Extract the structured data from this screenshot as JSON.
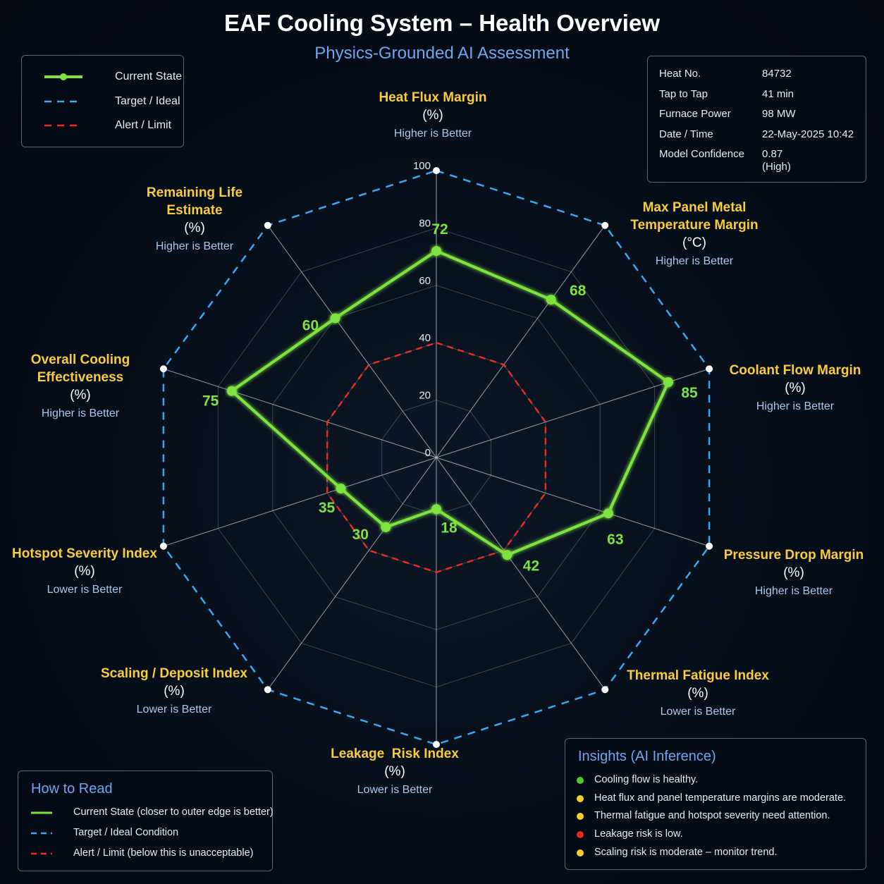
{
  "header": {
    "title": "EAF Cooling System – Health Overview",
    "subtitle": "Physics-Grounded AI Assessment"
  },
  "legend": {
    "items": [
      {
        "label": "Current State",
        "color": "#7ee33f",
        "style": "solid-marker"
      },
      {
        "label": "Target / Ideal",
        "color": "#39a9f0",
        "style": "dashed"
      },
      {
        "label": "Alert / Limit",
        "color": "#ea2d22",
        "style": "dashed"
      }
    ]
  },
  "info_box": {
    "rows": [
      {
        "key": "Heat No.",
        "value": "84732"
      },
      {
        "key": "Tap to Tap",
        "value": "41 min"
      },
      {
        "key": "Furnace Power",
        "value": "98 MW"
      },
      {
        "key": "Date / Time",
        "value": "22-May-2025 10:42"
      },
      {
        "key": "Model Confidence",
        "value": "0.87\n(High)"
      }
    ]
  },
  "chart_data": {
    "type": "radar",
    "title": "EAF Cooling System – Health Overview",
    "subtitle": "Physics-Grounded AI Assessment",
    "range": [
      0,
      100
    ],
    "ticks": [
      "0",
      "20",
      "40",
      "60",
      "80",
      "100"
    ],
    "axes": [
      {
        "name": "Heat Flux Margin",
        "unit": "(%)",
        "direction": "Higher is Better"
      },
      {
        "name": "Max Panel Metal\nTemperature Margin",
        "unit": "(°C)",
        "direction": "Higher is Better"
      },
      {
        "name": "Coolant Flow Margin",
        "unit": "(%)",
        "direction": "Higher is Better"
      },
      {
        "name": "Pressure Drop Margin",
        "unit": "(%)",
        "direction": "Higher is Better"
      },
      {
        "name": "Thermal Fatigue Index",
        "unit": "(%)",
        "direction": "Lower is Better"
      },
      {
        "name": "Leakage  Risk Index",
        "unit": "(%)",
        "direction": "Lower is Better"
      },
      {
        "name": "Scaling / Deposit Index",
        "unit": "(%)",
        "direction": "Lower is Better"
      },
      {
        "name": "Hotspot Severity Index",
        "unit": "(%)",
        "direction": "Lower is Better"
      },
      {
        "name": "Overall Cooling\nEffectiveness",
        "unit": "(%)",
        "direction": "Higher is Better"
      },
      {
        "name": "Remaining Life\nEstimate",
        "unit": "(%)",
        "direction": "Higher is Better"
      }
    ],
    "series": [
      {
        "name": "Current State",
        "color": "#7ee33f",
        "values": [
          72,
          68,
          85,
          63,
          42,
          18,
          30,
          35,
          75,
          60
        ]
      },
      {
        "name": "Target / Ideal",
        "color": "#39a9f0",
        "values": [
          100,
          100,
          100,
          100,
          100,
          100,
          100,
          100,
          100,
          100
        ]
      },
      {
        "name": "Alert / Limit",
        "color": "#ea2d22",
        "values": [
          40,
          40,
          40,
          40,
          40,
          40,
          40,
          40,
          40,
          40
        ]
      }
    ],
    "grid": true
  },
  "how_to_read": {
    "title": "How to Read",
    "items": [
      {
        "label": "Current State (closer to outer edge is better)",
        "color": "#7ee33f",
        "style": "solid"
      },
      {
        "label": "Target / Ideal Condition",
        "color": "#39a9f0",
        "style": "dashed"
      },
      {
        "label": "Alert / Limit (below this is unacceptable)",
        "color": "#ea2d22",
        "style": "dashed"
      }
    ]
  },
  "insights": {
    "title": "Insights (AI Inference)",
    "items": [
      {
        "text": "Cooling flow is healthy.",
        "color": "#4cc832"
      },
      {
        "text": "Heat flux and panel temperature margins are moderate.",
        "color": "#f5d028"
      },
      {
        "text": "Thermal fatigue and hotspot severity need attention.",
        "color": "#f5d028"
      },
      {
        "text": "Leakage risk is low.",
        "color": "#e42a1d"
      },
      {
        "text": "Scaling risk is moderate – monitor trend.",
        "color": "#f5d028"
      }
    ]
  }
}
